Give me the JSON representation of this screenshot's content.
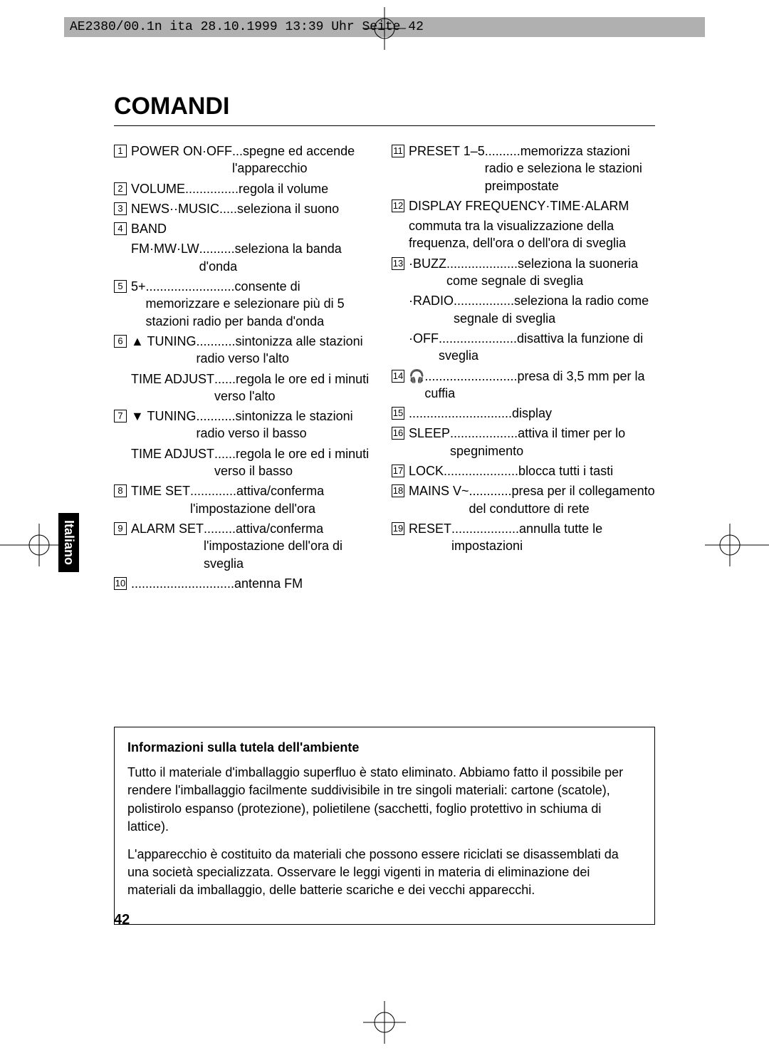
{
  "header": "AE2380/00.1n ita  28.10.1999  13:39 Uhr  Seite 42",
  "side_tab": "Italiano",
  "title": "COMANDI",
  "page_number": "42",
  "left_col": [
    {
      "num": "1",
      "label": "POWER ON·OFF ",
      "desc": "...spegne ed accende l'apparecchio"
    },
    {
      "num": "2",
      "label": "VOLUME",
      "desc": "...............regola il volume"
    },
    {
      "num": "3",
      "label": "NEWS··MUSIC",
      "desc": ".....seleziona il suono"
    },
    {
      "num": "4",
      "label": "BAND",
      "desc": ""
    },
    {
      "num": "",
      "sub": true,
      "label": "FM·MW·LW",
      "desc": "..........seleziona la banda d'onda"
    },
    {
      "num": "5",
      "label": "5+",
      "desc": ".........................consente di memorizzare e selezionare più di 5 stazioni radio per banda d'onda"
    },
    {
      "num": "6",
      "label": "▲ TUNING ",
      "desc": "...........sintonizza alle stazioni radio verso l'alto"
    },
    {
      "num": "",
      "sub": true,
      "label": "TIME ADJUST",
      "desc": "......regola le ore ed i minuti verso l'alto"
    },
    {
      "num": "7",
      "label": "▼ TUNING ",
      "desc": "...........sintonizza le stazioni radio verso il basso"
    },
    {
      "num": "",
      "sub": true,
      "label": "TIME ADJUST",
      "desc": "......regola le ore ed i minuti verso il basso"
    },
    {
      "num": "8",
      "label": "TIME SET",
      "desc": ".............attiva/conferma l'impostazione dell'ora"
    },
    {
      "num": "9",
      "label": "ALARM SET",
      "desc": ".........attiva/conferma l'impostazione dell'ora di sveglia"
    },
    {
      "num": "10",
      "label": "",
      "desc": ".............................antenna FM"
    }
  ],
  "right_col": [
    {
      "num": "11",
      "label": "PRESET 1–5",
      "desc": "..........memorizza stazioni radio e seleziona le stazioni preimpostate"
    },
    {
      "num": "12",
      "label": "DISPLAY FREQUENCY·TIME·ALARM",
      "desc": ""
    },
    {
      "num": "",
      "sub": true,
      "label": "",
      "desc": "commuta tra la visualizzazione della frequenza, dell'ora o dell'ora di sveglia"
    },
    {
      "num": "13",
      "label": "·BUZZ",
      "desc": "....................seleziona la suoneria come segnale di sveglia"
    },
    {
      "num": "",
      "sub": true,
      "label": "·RADIO",
      "desc": ".................seleziona la radio come segnale di sveglia"
    },
    {
      "num": "",
      "sub": true,
      "label": "·OFF ",
      "desc": "......................disattiva la funzione di sveglia"
    },
    {
      "num": "14",
      "label": "🎧 ",
      "desc": "..........................presa di 3,5 mm per la cuffia"
    },
    {
      "num": "15",
      "label": "",
      "desc": ".............................display"
    },
    {
      "num": "16",
      "label": "SLEEP ",
      "desc": "...................attiva il timer per lo spegnimento"
    },
    {
      "num": "17",
      "label": "LOCK",
      "desc": ".....................blocca tutti i tasti"
    },
    {
      "num": "18",
      "label": "MAINS V~",
      "desc": "............presa per il collegamento del conduttore di rete"
    },
    {
      "num": "19",
      "label": "RESET",
      "desc": "...................annulla tutte le impostazioni"
    }
  ],
  "info": {
    "heading": "Informazioni sulla tutela dell'ambiente",
    "p1": "Tutto il materiale d'imballaggio superfluo è stato eliminato. Abbiamo fatto il possibile per rendere l'imballaggio facilmente suddivisibile in tre singoli materiali: cartone (scatole), polistirolo espanso (protezione), polietilene (sacchetti, foglio protettivo in schiuma di lattice).",
    "p2": "L'apparecchio è costituito da materiali che possono essere riciclati se disassemblati da una società specializzata. Osservare le leggi vigenti in materia di eliminazione dei materiali da imballaggio, delle batterie scariche e dei vecchi apparecchi."
  }
}
